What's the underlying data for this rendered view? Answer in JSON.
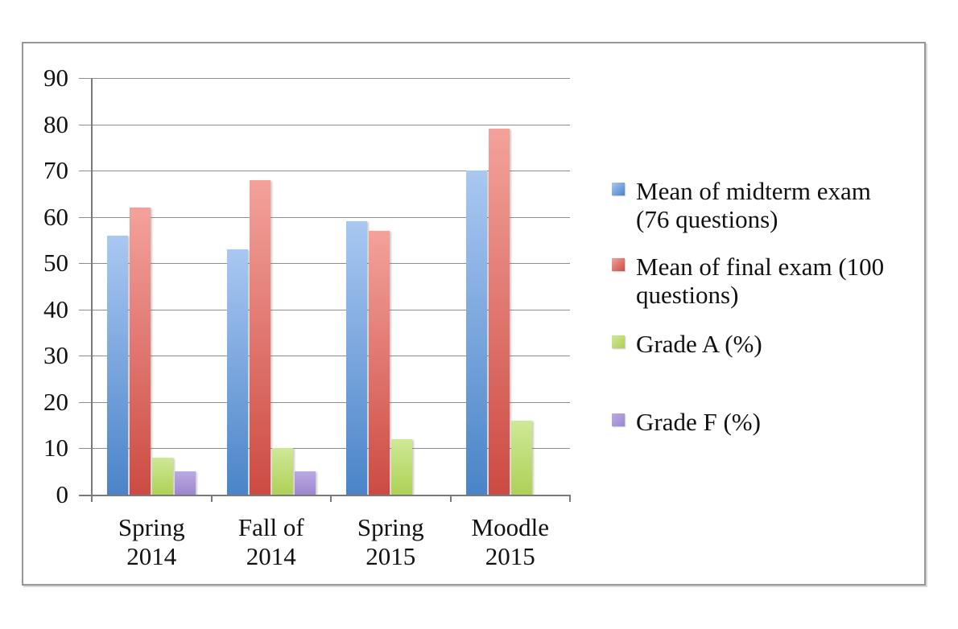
{
  "chart_data": {
    "type": "bar",
    "title": "",
    "categories": [
      "Spring 2014",
      "Fall of 2014",
      "Spring 2015",
      "Moodle 2015"
    ],
    "category_label_lines": [
      [
        "Spring",
        "2014"
      ],
      [
        "Fall of",
        "2014"
      ],
      [
        "Spring",
        "2015"
      ],
      [
        "Moodle",
        "2015"
      ]
    ],
    "series": [
      {
        "name": "Mean of midterm exam (76 questions)",
        "legend_lines": [
          "Mean of midterm exam",
          "(76 questions)"
        ],
        "values": [
          56,
          53,
          59,
          70
        ],
        "color_top": "#a9c8f2",
        "color_bottom": "#4a84c8"
      },
      {
        "name": "Mean of final exam (100 questions)",
        "legend_lines": [
          "Mean of final exam (100",
          "questions)"
        ],
        "values": [
          62,
          68,
          57,
          79
        ],
        "color_top": "#f3a29b",
        "color_bottom": "#cc4b43"
      },
      {
        "name": "Grade A (%)",
        "legend_lines": [
          "Grade A (%)"
        ],
        "values": [
          8,
          10,
          12,
          16
        ],
        "color_top": "#cfe897",
        "color_bottom": "#aed156"
      },
      {
        "name": "Grade F (%)",
        "legend_lines": [
          "Grade F (%)"
        ],
        "values": [
          5,
          5,
          0,
          0
        ],
        "color_top": "#baaae2",
        "color_bottom": "#9d87cf"
      }
    ],
    "y_axis": {
      "tick_labels": [
        "90",
        "80",
        "70",
        "60",
        "50",
        "40",
        "30",
        "20",
        "10",
        "0"
      ],
      "min": 0,
      "max": 90,
      "step": 10
    },
    "ylim": [
      0,
      90
    ],
    "grid": true,
    "legend_position": "right",
    "colors": {
      "gridline": "#8d8d8d",
      "axis": "#7a7a7a",
      "frame_border": "#979797",
      "text": "#111111",
      "background": "#ffffff"
    }
  }
}
